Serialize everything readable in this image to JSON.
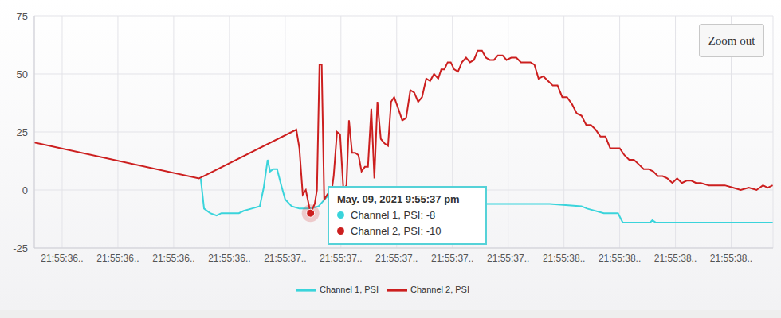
{
  "chart_data": {
    "type": "line",
    "xlim": [
      36.2,
      38.85
    ],
    "xticks": [
      {
        "value": 36.3,
        "label": "21:55:36.."
      },
      {
        "value": 36.5,
        "label": "21:55:36.."
      },
      {
        "value": 36.7,
        "label": "21:55:36.."
      },
      {
        "value": 36.9,
        "label": "21:55:36.."
      },
      {
        "value": 37.1,
        "label": "21:55:37.."
      },
      {
        "value": 37.3,
        "label": "21:55:37.."
      },
      {
        "value": 37.5,
        "label": "21:55:37.."
      },
      {
        "value": 37.7,
        "label": "21:55:37.."
      },
      {
        "value": 37.9,
        "label": "21:55:37.."
      },
      {
        "value": 38.1,
        "label": "21:55:38.."
      },
      {
        "value": 38.3,
        "label": "21:55:38.."
      },
      {
        "value": 38.5,
        "label": "21:55:38.."
      },
      {
        "value": 38.7,
        "label": "21:55:38.."
      }
    ],
    "ylim": [
      -25,
      75
    ],
    "yticks": [
      -25,
      0,
      25,
      50,
      75
    ],
    "grid": true,
    "legend": "bottom",
    "series": [
      {
        "name": "Channel 1, PSI",
        "color": "#3ad4db",
        "x": [
          36.797,
          36.809,
          36.831,
          36.854,
          36.871,
          36.934,
          36.951,
          36.98,
          37.009,
          37.023,
          37.037,
          37.046,
          37.057,
          37.071,
          37.086,
          37.1,
          37.123,
          37.151,
          37.191,
          37.22,
          37.249,
          37.277,
          37.306,
          37.351,
          37.369,
          37.791,
          38.049,
          38.163,
          38.183,
          38.243,
          38.294,
          38.311,
          38.409,
          38.417,
          38.429,
          38.849
        ],
        "values": [
          5,
          -8,
          -10,
          -11,
          -10,
          -10,
          -9,
          -8,
          -7,
          1,
          13,
          8,
          9,
          9,
          2,
          -4,
          -7,
          -8,
          -8,
          -7,
          -3,
          -2,
          -1,
          -1,
          -6,
          -6,
          -6,
          -7,
          -8,
          -10,
          -10,
          -14,
          -14,
          -13,
          -14,
          -14
        ]
      },
      {
        "name": "Channel 2, PSI",
        "color": "#cc1f1f",
        "x": [
          36.2,
          36.791,
          37.14,
          37.151,
          37.163,
          37.174,
          37.191,
          37.206,
          37.214,
          37.223,
          37.231,
          37.24,
          37.251,
          37.263,
          37.274,
          37.286,
          37.297,
          37.309,
          37.32,
          37.329,
          37.34,
          37.351,
          37.363,
          37.374,
          37.386,
          37.397,
          37.409,
          37.42,
          37.431,
          37.443,
          37.457,
          37.469,
          37.48,
          37.491,
          37.506,
          37.52,
          37.534,
          37.549,
          37.563,
          37.577,
          37.591,
          37.606,
          37.62,
          37.634,
          37.649,
          37.66,
          37.671,
          37.683,
          37.694,
          37.706,
          37.72,
          37.734,
          37.749,
          37.763,
          37.777,
          37.791,
          37.806,
          37.82,
          37.834,
          37.849,
          37.863,
          37.88,
          37.894,
          37.911,
          37.929,
          37.946,
          37.963,
          37.98,
          37.994,
          38.009,
          38.026,
          38.043,
          38.06,
          38.077,
          38.094,
          38.111,
          38.129,
          38.146,
          38.163,
          38.18,
          38.197,
          38.214,
          38.231,
          38.249,
          38.266,
          38.283,
          38.3,
          38.317,
          38.334,
          38.351,
          38.369,
          38.386,
          38.403,
          38.42,
          38.437,
          38.454,
          38.471,
          38.489,
          38.506,
          38.523,
          38.54,
          38.557,
          38.574,
          38.591,
          38.62,
          38.649,
          38.677,
          38.706,
          38.734,
          38.763,
          38.791,
          38.814,
          38.831,
          38.849
        ],
        "values": [
          20.5,
          5,
          26,
          18,
          -2,
          0,
          -10,
          -6,
          0,
          54,
          54,
          -4,
          -2,
          -4,
          6,
          25,
          24,
          0,
          2,
          30,
          16,
          16,
          15,
          8,
          10,
          10,
          35,
          5,
          38,
          22,
          20,
          19,
          38,
          40,
          35,
          30,
          31,
          43,
          42,
          38,
          40,
          48,
          47,
          50,
          48,
          52,
          52,
          55,
          55,
          52,
          51,
          55,
          57,
          55,
          56,
          60,
          60,
          57,
          56,
          56,
          58,
          58,
          56,
          57,
          57,
          55,
          55,
          55,
          54,
          48,
          49,
          47,
          45,
          45,
          40,
          40,
          37,
          33,
          32,
          28,
          28,
          26,
          23,
          23,
          18,
          18,
          18,
          15,
          13,
          13,
          11,
          9,
          9,
          8,
          6,
          6,
          5,
          3,
          5,
          3,
          4,
          4,
          3,
          3,
          2,
          2,
          2,
          1,
          0,
          1,
          0,
          2,
          1,
          2
        ]
      }
    ],
    "annotations": {
      "button": "Zoom out",
      "tooltip": {
        "title": "May. 09, 2021 9:55:37 pm",
        "items": [
          "Channel 1, PSI: -8",
          "Channel 2, PSI: -10"
        ]
      }
    }
  }
}
